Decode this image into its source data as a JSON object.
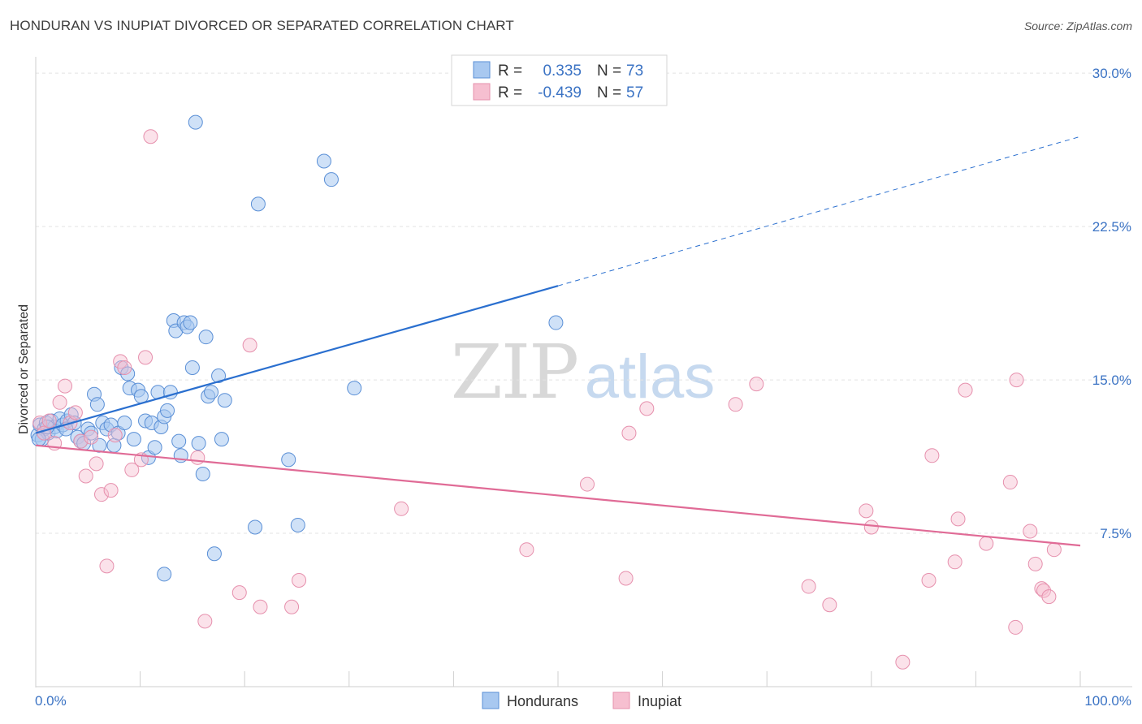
{
  "header": {
    "title": "HONDURAN VS INUPIAT DIVORCED OR SEPARATED CORRELATION CHART",
    "source": "Source: ZipAtlas.com"
  },
  "watermark": {
    "zip": "ZIP",
    "atlas": "atlas"
  },
  "colors": {
    "hondurans_fill": "#a8c8f0",
    "hondurans_stroke": "#5a8fd6",
    "hondurans_line": "#2a6fcf",
    "inupiat_fill": "#f6bfd0",
    "inupiat_stroke": "#e690ad",
    "inupiat_line": "#e06b96",
    "axis_label": "#3b73c4",
    "grid": "#e3e3e3"
  },
  "legend": {
    "rows": [
      {
        "r_label": "R =",
        "r_value": "0.335",
        "n_label": "N =",
        "n_value": "73"
      },
      {
        "r_label": "R =",
        "r_value": "-0.439",
        "n_label": "N =",
        "n_value": "57"
      }
    ]
  },
  "bottom_legend": {
    "items": [
      "Hondurans",
      "Inupiat"
    ]
  },
  "chart_data": {
    "type": "scatter",
    "title": "HONDURAN VS INUPIAT DIVORCED OR SEPARATED CORRELATION CHART",
    "xlabel": "",
    "ylabel": "Divorced or Separated",
    "xlim": [
      0,
      100
    ],
    "ylim": [
      0,
      30.8
    ],
    "x_tick_labels": [
      "0.0%",
      "100.0%"
    ],
    "y_ticks": [
      7.5,
      15.0,
      22.5,
      30.0
    ],
    "y_tick_labels": [
      "7.5%",
      "15.0%",
      "22.5%",
      "30.0%"
    ],
    "grid": true,
    "legend_position": "top-center",
    "series": [
      {
        "name": "Hondurans",
        "r": 0.335,
        "n": 73,
        "trend": {
          "x0": 0,
          "y0": 12.4,
          "x1": 50,
          "y1": 19.6,
          "dashed_to_x": 100,
          "dashed_to_y": 26.9
        },
        "points": [
          [
            0.2,
            12.3
          ],
          [
            0.4,
            12.8
          ],
          [
            0.6,
            12.1
          ],
          [
            0.8,
            12.6
          ],
          [
            1.0,
            12.9
          ],
          [
            1.2,
            12.4
          ],
          [
            1.5,
            13.0
          ],
          [
            1.8,
            12.7
          ],
          [
            2.0,
            12.5
          ],
          [
            2.3,
            13.1
          ],
          [
            2.6,
            12.8
          ],
          [
            3.0,
            13.0
          ],
          [
            3.4,
            13.3
          ],
          [
            3.7,
            12.9
          ],
          [
            4.0,
            12.2
          ],
          [
            4.3,
            12.0
          ],
          [
            4.6,
            11.9
          ],
          [
            5.0,
            12.6
          ],
          [
            5.3,
            12.4
          ],
          [
            5.6,
            14.3
          ],
          [
            5.9,
            13.8
          ],
          [
            6.1,
            11.8
          ],
          [
            6.4,
            12.9
          ],
          [
            6.8,
            12.6
          ],
          [
            7.2,
            12.8
          ],
          [
            7.5,
            11.8
          ],
          [
            7.9,
            12.4
          ],
          [
            8.2,
            15.6
          ],
          [
            8.5,
            12.9
          ],
          [
            8.8,
            15.3
          ],
          [
            9.0,
            14.6
          ],
          [
            9.4,
            12.1
          ],
          [
            9.8,
            14.5
          ],
          [
            10.1,
            14.2
          ],
          [
            10.5,
            13.0
          ],
          [
            10.8,
            11.2
          ],
          [
            11.1,
            12.9
          ],
          [
            11.4,
            11.7
          ],
          [
            11.7,
            14.4
          ],
          [
            12.0,
            12.7
          ],
          [
            12.3,
            13.2
          ],
          [
            12.6,
            13.5
          ],
          [
            12.9,
            14.4
          ],
          [
            13.2,
            17.9
          ],
          [
            13.4,
            17.4
          ],
          [
            13.7,
            12.0
          ],
          [
            13.9,
            11.3
          ],
          [
            14.2,
            17.8
          ],
          [
            14.5,
            17.6
          ],
          [
            14.8,
            17.8
          ],
          [
            15.0,
            15.6
          ],
          [
            15.3,
            27.6
          ],
          [
            15.6,
            11.9
          ],
          [
            16.0,
            10.4
          ],
          [
            16.3,
            17.1
          ],
          [
            16.5,
            14.2
          ],
          [
            16.8,
            14.4
          ],
          [
            17.1,
            6.5
          ],
          [
            17.5,
            15.2
          ],
          [
            17.8,
            12.1
          ],
          [
            18.1,
            14.0
          ],
          [
            21.3,
            23.6
          ],
          [
            21.0,
            7.8
          ],
          [
            12.3,
            5.5
          ],
          [
            24.2,
            11.1
          ],
          [
            25.1,
            7.9
          ],
          [
            27.6,
            25.7
          ],
          [
            28.3,
            24.8
          ],
          [
            30.5,
            14.6
          ],
          [
            49.8,
            17.8
          ],
          [
            0.3,
            12.1
          ],
          [
            1.1,
            12.7
          ],
          [
            2.9,
            12.6
          ]
        ]
      },
      {
        "name": "Inupiat",
        "r": -0.439,
        "n": 57,
        "trend": {
          "x0": 0,
          "y0": 11.8,
          "x1": 100,
          "y1": 6.9
        },
        "points": [
          [
            0.4,
            12.9
          ],
          [
            0.8,
            12.4
          ],
          [
            1.3,
            13.0
          ],
          [
            1.8,
            11.9
          ],
          [
            2.3,
            13.9
          ],
          [
            2.8,
            14.7
          ],
          [
            3.3,
            12.9
          ],
          [
            3.8,
            13.4
          ],
          [
            4.3,
            12.0
          ],
          [
            4.8,
            10.3
          ],
          [
            5.3,
            12.2
          ],
          [
            5.8,
            10.9
          ],
          [
            6.3,
            9.4
          ],
          [
            6.8,
            5.9
          ],
          [
            7.2,
            9.6
          ],
          [
            7.6,
            12.3
          ],
          [
            8.1,
            15.9
          ],
          [
            8.5,
            15.6
          ],
          [
            9.2,
            10.6
          ],
          [
            10.1,
            11.1
          ],
          [
            10.5,
            16.1
          ],
          [
            11.0,
            26.9
          ],
          [
            15.5,
            11.2
          ],
          [
            16.2,
            3.2
          ],
          [
            19.5,
            4.6
          ],
          [
            20.5,
            16.7
          ],
          [
            21.5,
            3.9
          ],
          [
            24.5,
            3.9
          ],
          [
            25.2,
            5.2
          ],
          [
            35.0,
            8.7
          ],
          [
            47.0,
            6.7
          ],
          [
            52.8,
            9.9
          ],
          [
            56.5,
            5.3
          ],
          [
            56.8,
            12.4
          ],
          [
            58.5,
            13.6
          ],
          [
            67.0,
            13.8
          ],
          [
            69.0,
            14.8
          ],
          [
            74.0,
            4.9
          ],
          [
            76.0,
            4.0
          ],
          [
            79.5,
            8.6
          ],
          [
            80.0,
            7.8
          ],
          [
            83.0,
            1.2
          ],
          [
            85.5,
            5.2
          ],
          [
            85.8,
            11.3
          ],
          [
            88.0,
            6.1
          ],
          [
            88.3,
            8.2
          ],
          [
            89.0,
            14.5
          ],
          [
            91.0,
            7.0
          ],
          [
            93.3,
            10.0
          ],
          [
            93.8,
            2.9
          ],
          [
            93.9,
            15.0
          ],
          [
            95.2,
            7.6
          ],
          [
            95.7,
            6.0
          ],
          [
            96.3,
            4.8
          ],
          [
            96.5,
            4.7
          ],
          [
            97.0,
            4.4
          ],
          [
            97.5,
            6.7
          ]
        ]
      }
    ]
  }
}
